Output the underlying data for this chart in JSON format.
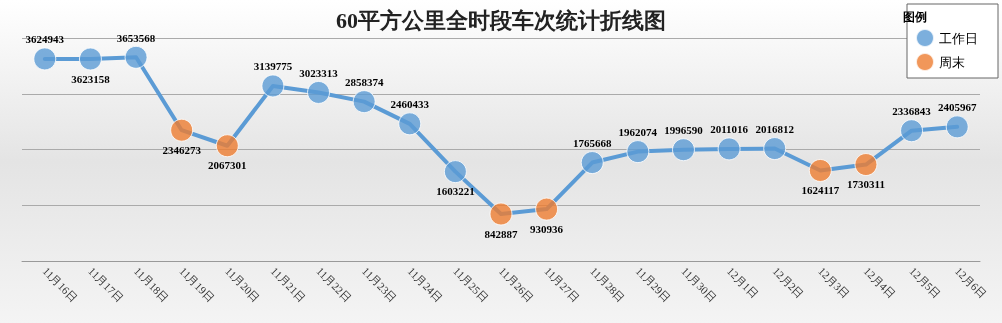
{
  "chart_data": {
    "type": "line",
    "title": "60平方公里全时段车次统计折线图",
    "legend_title": "图例",
    "categories": [
      "11月16日",
      "11月17日",
      "11月18日",
      "11月19日",
      "11月20日",
      "11月21日",
      "11月22日",
      "11月23日",
      "11月24日",
      "11月25日",
      "11月26日",
      "11月27日",
      "11月28日",
      "11月29日",
      "11月30日",
      "12月1日",
      "12月2日",
      "12月3日",
      "12月4日",
      "12月5日",
      "12月6日"
    ],
    "series": [
      {
        "color": "#5b9bd5",
        "marker": "none",
        "value_labels": [
          "3624943",
          "3623158",
          "3653568",
          "2346273",
          "2067301",
          "3139775",
          "3023313",
          "2858374",
          "2460433",
          "1603221",
          "842887",
          "930936",
          "1765668",
          "1962074",
          "1996590",
          "2011016",
          "2016812",
          "1624117",
          "1730311",
          "2336843",
          "2405967"
        ],
        "values": [
          3624943,
          3623158,
          3653568,
          2346273,
          2067301,
          3139775,
          3023313,
          2858374,
          2460433,
          1603221,
          842887,
          930936,
          1765668,
          1962074,
          1996590,
          2011016,
          2016812,
          1624117,
          1730311,
          2336843,
          2405967
        ]
      },
      {
        "type": "scatter",
        "name": "工作日",
        "color": "#5b9bd5",
        "values": [
          3624943,
          3623158,
          3653568,
          null,
          null,
          3139775,
          3023313,
          2858374,
          2460433,
          1603221,
          null,
          null,
          1765668,
          1962074,
          1996590,
          2011016,
          2016812,
          null,
          null,
          2336843,
          2405967
        ]
      },
      {
        "type": "scatter",
        "name": "周末",
        "color": "#ed7d31",
        "values": [
          null,
          null,
          null,
          2346273,
          2067301,
          null,
          null,
          null,
          null,
          null,
          842887,
          930936,
          null,
          null,
          null,
          null,
          null,
          1624117,
          1730311,
          null,
          null
        ]
      }
    ],
    "grid": "y",
    "tick_labels": "x",
    "legend": "top right",
    "marker": "circle",
    "line_style": "solid"
  }
}
